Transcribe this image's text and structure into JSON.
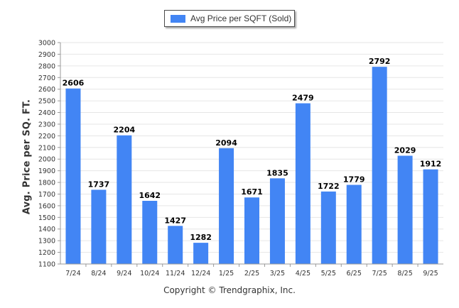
{
  "legend": {
    "label": "Avg Price per SQFT (Sold)"
  },
  "footer": {
    "copyright": "Copyright © Trendgraphix, Inc."
  },
  "colors": {
    "bar": "#4285f4",
    "grid": "#e6e6e6",
    "axis": "#999999"
  },
  "chart_data": {
    "type": "bar",
    "categories": [
      "7/24",
      "8/24",
      "9/24",
      "10/24",
      "11/24",
      "12/24",
      "1/25",
      "2/25",
      "3/25",
      "4/25",
      "5/25",
      "6/25",
      "7/25",
      "8/25",
      "9/25"
    ],
    "series": [
      {
        "name": "Avg Price per SQFT (Sold)",
        "values": [
          2606,
          1737,
          2204,
          1642,
          1427,
          1282,
          2094,
          1671,
          1835,
          2479,
          1722,
          1779,
          2792,
          2029,
          1912
        ]
      }
    ],
    "ylabel": "Avg. Price per SQ. FT.",
    "xlabel": "",
    "ylim": [
      1100,
      3000
    ],
    "yticks": [
      1100,
      1200,
      1300,
      1400,
      1500,
      1600,
      1700,
      1800,
      1900,
      2000,
      2100,
      2200,
      2300,
      2400,
      2500,
      2600,
      2700,
      2800,
      2900,
      3000
    ],
    "grid": true,
    "legend_position": "top-center",
    "data_labels": true
  }
}
